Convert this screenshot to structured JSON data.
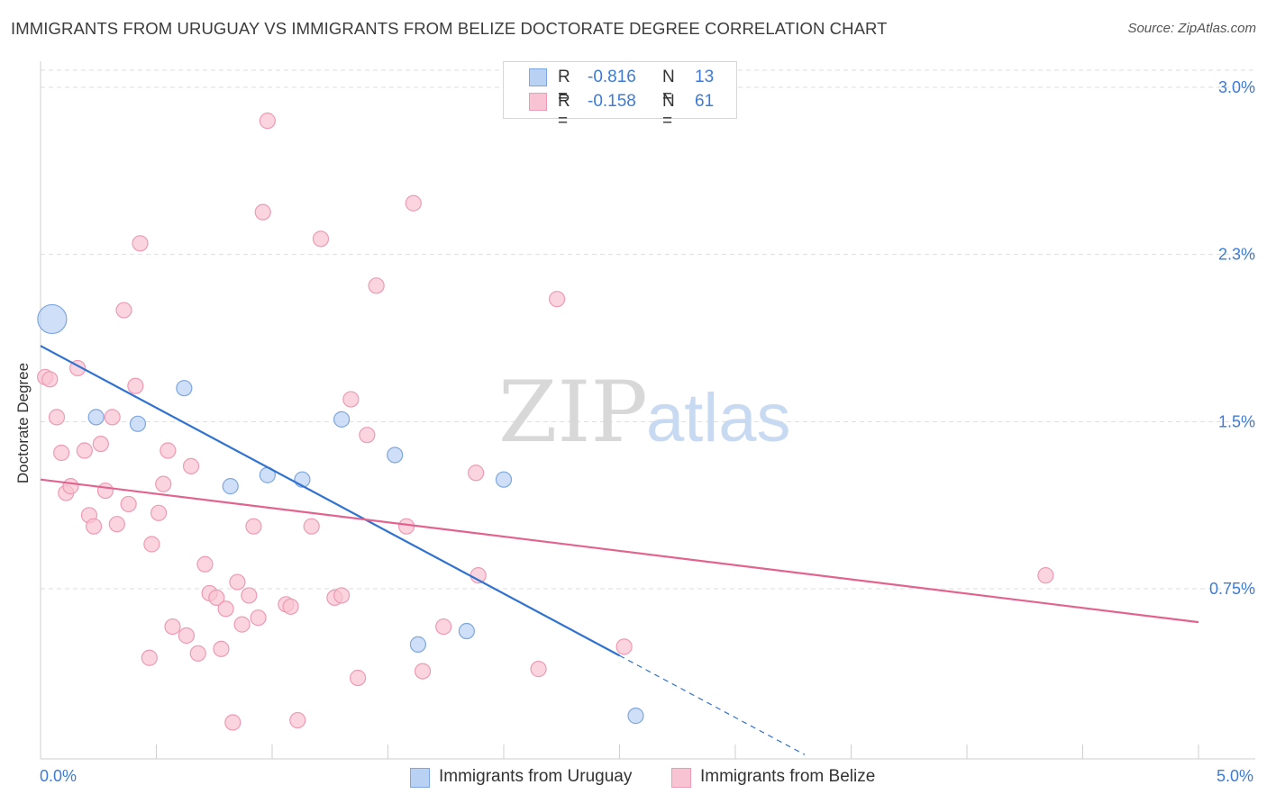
{
  "title": "IMMIGRANTS FROM URUGUAY VS IMMIGRANTS FROM BELIZE DOCTORATE DEGREE CORRELATION CHART",
  "source": "Source: ZipAtlas.com",
  "watermark": {
    "zip": "ZIP",
    "atlas": "atlas"
  },
  "legend": {
    "uruguay": {
      "r_label": "R =",
      "r_value": "-0.816",
      "n_label": "N =",
      "n_value": "13"
    },
    "belize": {
      "r_label": "R =",
      "r_value": "-0.158",
      "n_label": "N =",
      "n_value": "61"
    }
  },
  "colors": {
    "uruguay_fill": "#b9d1f3",
    "uruguay_stroke": "#7da7e0",
    "uruguay_line": "#2f72d0",
    "belize_fill": "#f8c3d2",
    "belize_stroke": "#ee9ab4",
    "belize_line": "#e2638f",
    "axis_text": "#3d7bd6",
    "grid": "#dedede"
  },
  "chart_data": {
    "type": "scatter",
    "title": "IMMIGRANTS FROM URUGUAY VS IMMIGRANTS FROM BELIZE DOCTORATE DEGREE CORRELATION CHART",
    "xlabel": "",
    "ylabel": "Doctorate Degree",
    "xlim": [
      0,
      5
    ],
    "ylim": [
      0,
      3.1
    ],
    "x_tick_labels": [
      "0.0%",
      "5.0%"
    ],
    "y_ticks": [
      0.75,
      1.5,
      2.25,
      3.0
    ],
    "y_tick_labels": [
      "0.75%",
      "1.5%",
      "2.3%",
      "3.0%"
    ],
    "grid": "horizontal dashed",
    "legend_position": "top-center",
    "series": [
      {
        "name": "Immigrants from Uruguay",
        "points": [
          {
            "x": 0.05,
            "y": 1.96,
            "big": true
          },
          {
            "x": 0.24,
            "y": 1.52
          },
          {
            "x": 0.42,
            "y": 1.49
          },
          {
            "x": 0.62,
            "y": 1.65
          },
          {
            "x": 0.82,
            "y": 1.21
          },
          {
            "x": 0.98,
            "y": 1.26
          },
          {
            "x": 1.13,
            "y": 1.24
          },
          {
            "x": 1.3,
            "y": 1.51
          },
          {
            "x": 1.53,
            "y": 1.35
          },
          {
            "x": 1.63,
            "y": 0.5
          },
          {
            "x": 1.84,
            "y": 0.56
          },
          {
            "x": 2.0,
            "y": 1.24
          },
          {
            "x": 2.57,
            "y": 0.18
          }
        ],
        "trend": {
          "x1": 0.0,
          "y1": 1.84,
          "x2": 2.5,
          "y2": 0.45,
          "dash_to_x": 3.3
        }
      },
      {
        "name": "Immigrants from Belize",
        "points": [
          {
            "x": 0.02,
            "y": 1.7
          },
          {
            "x": 0.04,
            "y": 1.69
          },
          {
            "x": 0.07,
            "y": 1.52
          },
          {
            "x": 0.09,
            "y": 1.36
          },
          {
            "x": 0.11,
            "y": 1.18
          },
          {
            "x": 0.13,
            "y": 1.21
          },
          {
            "x": 0.16,
            "y": 1.74
          },
          {
            "x": 0.19,
            "y": 1.37
          },
          {
            "x": 0.21,
            "y": 1.08
          },
          {
            "x": 0.23,
            "y": 1.03
          },
          {
            "x": 0.26,
            "y": 1.4
          },
          {
            "x": 0.28,
            "y": 1.19
          },
          {
            "x": 0.31,
            "y": 1.52
          },
          {
            "x": 0.33,
            "y": 1.04
          },
          {
            "x": 0.36,
            "y": 2.0
          },
          {
            "x": 0.38,
            "y": 1.13
          },
          {
            "x": 0.41,
            "y": 1.66
          },
          {
            "x": 0.43,
            "y": 2.3
          },
          {
            "x": 0.47,
            "y": 0.44
          },
          {
            "x": 0.48,
            "y": 0.95
          },
          {
            "x": 0.51,
            "y": 1.09
          },
          {
            "x": 0.53,
            "y": 1.22
          },
          {
            "x": 0.55,
            "y": 1.37
          },
          {
            "x": 0.57,
            "y": 0.58
          },
          {
            "x": 0.63,
            "y": 0.54
          },
          {
            "x": 0.65,
            "y": 1.3
          },
          {
            "x": 0.68,
            "y": 0.46
          },
          {
            "x": 0.71,
            "y": 0.86
          },
          {
            "x": 0.73,
            "y": 0.73
          },
          {
            "x": 0.76,
            "y": 0.71
          },
          {
            "x": 0.78,
            "y": 0.48
          },
          {
            "x": 0.8,
            "y": 0.66
          },
          {
            "x": 0.83,
            "y": 0.15
          },
          {
            "x": 0.85,
            "y": 0.78
          },
          {
            "x": 0.87,
            "y": 0.59
          },
          {
            "x": 0.9,
            "y": 0.72
          },
          {
            "x": 0.92,
            "y": 1.03
          },
          {
            "x": 0.94,
            "y": 0.62
          },
          {
            "x": 0.96,
            "y": 2.44
          },
          {
            "x": 0.98,
            "y": 2.85
          },
          {
            "x": 1.06,
            "y": 0.68
          },
          {
            "x": 1.08,
            "y": 0.67
          },
          {
            "x": 1.11,
            "y": 0.16
          },
          {
            "x": 1.17,
            "y": 1.03
          },
          {
            "x": 1.21,
            "y": 2.32
          },
          {
            "x": 1.27,
            "y": 0.71
          },
          {
            "x": 1.3,
            "y": 0.72
          },
          {
            "x": 1.34,
            "y": 1.6
          },
          {
            "x": 1.37,
            "y": 0.35
          },
          {
            "x": 1.41,
            "y": 1.44
          },
          {
            "x": 1.45,
            "y": 2.11
          },
          {
            "x": 1.58,
            "y": 1.03
          },
          {
            "x": 1.61,
            "y": 2.48
          },
          {
            "x": 1.65,
            "y": 0.38
          },
          {
            "x": 1.74,
            "y": 0.58
          },
          {
            "x": 1.88,
            "y": 1.27
          },
          {
            "x": 1.89,
            "y": 0.81
          },
          {
            "x": 2.15,
            "y": 0.39
          },
          {
            "x": 2.23,
            "y": 2.05
          },
          {
            "x": 2.52,
            "y": 0.49
          },
          {
            "x": 4.34,
            "y": 0.81
          }
        ],
        "trend": {
          "x1": 0.0,
          "y1": 1.24,
          "x2": 5.0,
          "y2": 0.6
        }
      }
    ]
  }
}
